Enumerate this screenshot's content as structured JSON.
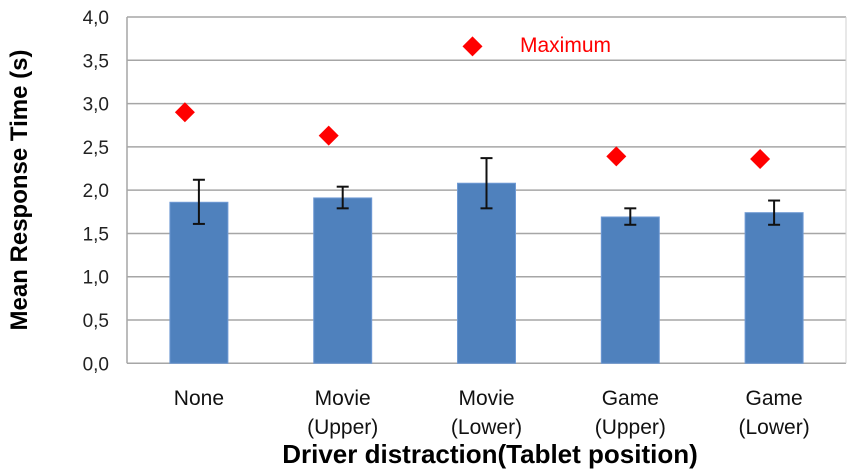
{
  "chart_data": {
    "type": "bar",
    "title": "",
    "xlabel": "Driver distraction(Tablet position)",
    "ylabel": "Mean Response Time (s)",
    "ylim": [
      0,
      4.0
    ],
    "yticks": [
      "0,0",
      "0,5",
      "1,0",
      "1,5",
      "2,0",
      "2,5",
      "3,0",
      "3,5",
      "4,0"
    ],
    "grid": true,
    "categories": [
      [
        "None"
      ],
      [
        "Movie",
        "(Upper)"
      ],
      [
        "Movie",
        "(Lower)"
      ],
      [
        "Game",
        "(Upper)"
      ],
      [
        "Game",
        "(Lower)"
      ]
    ],
    "series": [
      {
        "type": "bar",
        "values": [
          1.86,
          1.91,
          2.08,
          1.69,
          1.74
        ],
        "error_low": [
          1.61,
          1.79,
          1.79,
          1.6,
          1.6
        ],
        "error_high": [
          2.12,
          2.04,
          2.37,
          1.79,
          1.88
        ],
        "color": "#4f81bd"
      },
      {
        "type": "scatter",
        "name": "Maximum",
        "values": [
          2.9,
          2.63,
          3.66,
          2.39,
          2.36
        ],
        "color": "#ff0000",
        "marker": "diamond"
      }
    ],
    "legend_placement": "top"
  }
}
